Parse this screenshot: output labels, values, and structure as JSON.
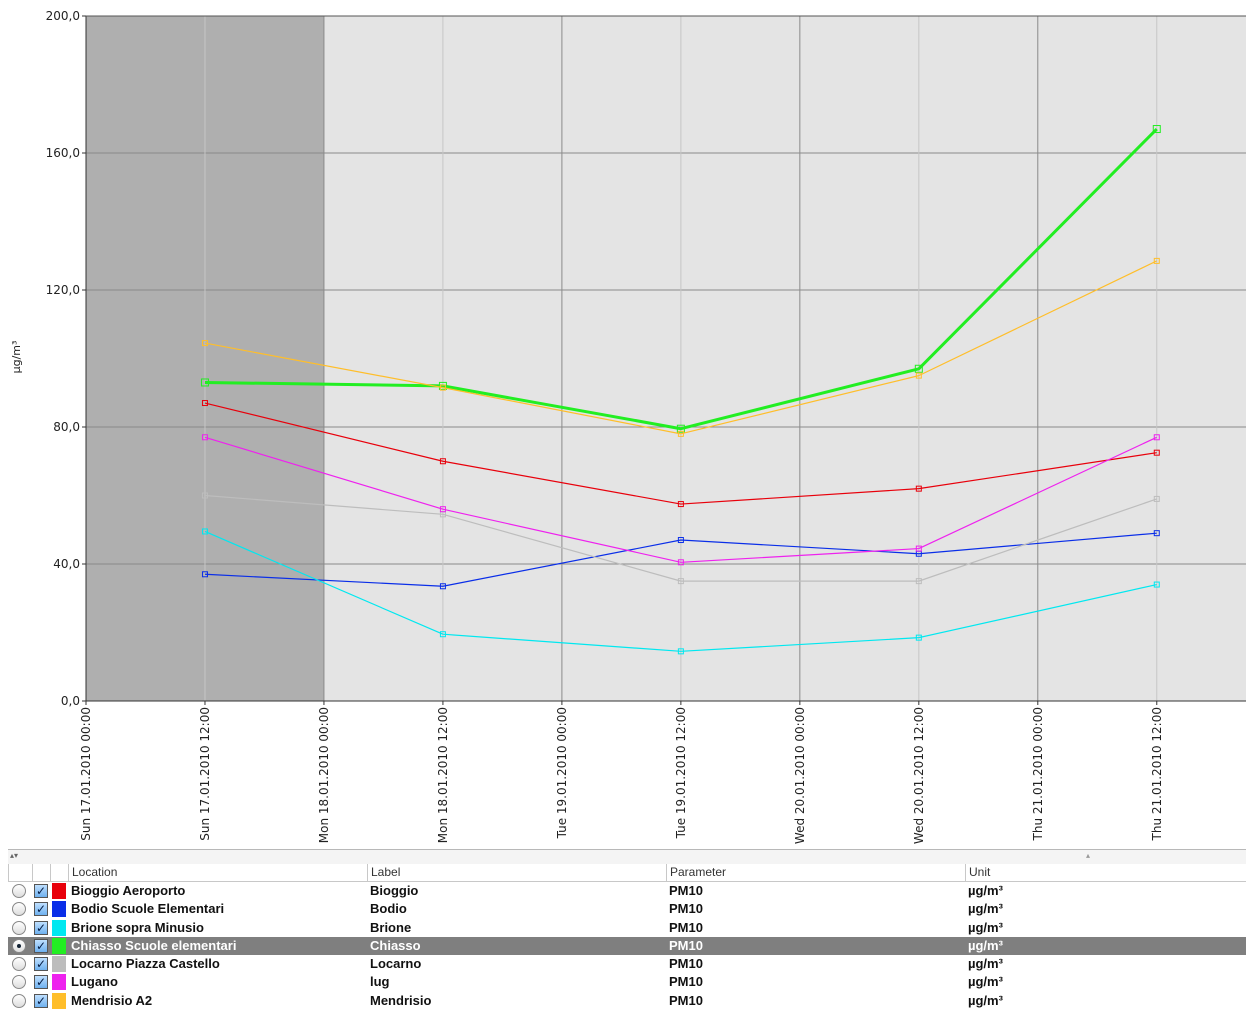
{
  "chart_data": {
    "type": "line",
    "ylabel": "µg/m³",
    "ylim": [
      0,
      200
    ],
    "yticks": [
      "0,0",
      "40,0",
      "80,0",
      "120,0",
      "160,0",
      "200,0"
    ],
    "ytick_values": [
      0,
      40,
      80,
      120,
      160,
      200
    ],
    "xlim": [
      "2010-01-17T00:00",
      "2010-01-21T21:00"
    ],
    "xticks": [
      {
        "label": "Sun 17.01.2010 00:00",
        "t": "2010-01-17T00:00"
      },
      {
        "label": "Sun 17.01.2010 12:00",
        "t": "2010-01-17T12:00"
      },
      {
        "label": "Mon 18.01.2010 00:00",
        "t": "2010-01-18T00:00"
      },
      {
        "label": "Mon 18.01.2010 12:00",
        "t": "2010-01-18T12:00"
      },
      {
        "label": "Tue 19.01.2010 00:00",
        "t": "2010-01-19T00:00"
      },
      {
        "label": "Tue 19.01.2010 12:00",
        "t": "2010-01-19T12:00"
      },
      {
        "label": "Wed 20.01.2010 00:00",
        "t": "2010-01-20T00:00"
      },
      {
        "label": "Wed 20.01.2010 12:00",
        "t": "2010-01-20T12:00"
      },
      {
        "label": "Thu 21.01.2010 00:00",
        "t": "2010-01-21T00:00"
      },
      {
        "label": "Thu 21.01.2010 12:00",
        "t": "2010-01-21T12:00"
      }
    ],
    "shaded_range": [
      "2010-01-17T00:00",
      "2010-01-18T00:00"
    ],
    "x": [
      "2010-01-17T12:00",
      "2010-01-18T12:00",
      "2010-01-19T12:00",
      "2010-01-20T12:00",
      "2010-01-21T12:00"
    ],
    "grid": true,
    "series": [
      {
        "name": "Bioggio Aeroporto",
        "color": "#e8000b",
        "values": [
          87,
          70,
          57.5,
          62,
          72.5
        ]
      },
      {
        "name": "Bodio Scuole Elementari",
        "color": "#0a2ee8",
        "values": [
          37,
          33.5,
          47,
          43,
          49
        ]
      },
      {
        "name": "Brione sopra Minusio",
        "color": "#00e8f0",
        "values": [
          49.5,
          19.5,
          14.5,
          18.5,
          34
        ]
      },
      {
        "name": "Chiasso Scuole elementari",
        "color": "#22ee22",
        "values": [
          93,
          92,
          79.5,
          97,
          167
        ],
        "bold": true
      },
      {
        "name": "Locarno Piazza Castello",
        "color": "#bdbdbd",
        "values": [
          60,
          54.5,
          35,
          35,
          59
        ]
      },
      {
        "name": "Lugano",
        "color": "#ee22ee",
        "values": [
          77,
          56,
          40.5,
          44.5,
          77
        ]
      },
      {
        "name": "Mendrisio A2",
        "color": "#ffbe2a",
        "values": [
          104.5,
          91.5,
          78,
          95,
          128.5
        ]
      }
    ]
  },
  "table": {
    "headers": {
      "location": "Location",
      "label": "Label",
      "parameter": "Parameter",
      "unit": "Unit"
    },
    "rows": [
      {
        "location": "Bioggio Aeroporto",
        "label": "Bioggio",
        "parameter": "PM10",
        "unit": "µg/m³",
        "color": "#e8000b",
        "selected": false,
        "checked": true
      },
      {
        "location": "Bodio Scuole Elementari",
        "label": "Bodio",
        "parameter": "PM10",
        "unit": "µg/m³",
        "color": "#0a2ee8",
        "selected": false,
        "checked": true
      },
      {
        "location": "Brione sopra Minusio",
        "label": "Brione",
        "parameter": "PM10",
        "unit": "µg/m³",
        "color": "#00e8f0",
        "selected": false,
        "checked": true
      },
      {
        "location": "Chiasso Scuole elementari",
        "label": "Chiasso",
        "parameter": "PM10",
        "unit": "µg/m³",
        "color": "#22ee22",
        "selected": true,
        "checked": true
      },
      {
        "location": "Locarno Piazza Castello",
        "label": "Locarno",
        "parameter": "PM10",
        "unit": "µg/m³",
        "color": "#bdbdbd",
        "selected": false,
        "checked": true
      },
      {
        "location": "Lugano",
        "label": "lug",
        "parameter": "PM10",
        "unit": "µg/m³",
        "color": "#ee22ee",
        "selected": false,
        "checked": true
      },
      {
        "location": "Mendrisio A2",
        "label": "Mendrisio",
        "parameter": "PM10",
        "unit": "µg/m³",
        "color": "#ffbe2a",
        "selected": false,
        "checked": true
      }
    ]
  }
}
